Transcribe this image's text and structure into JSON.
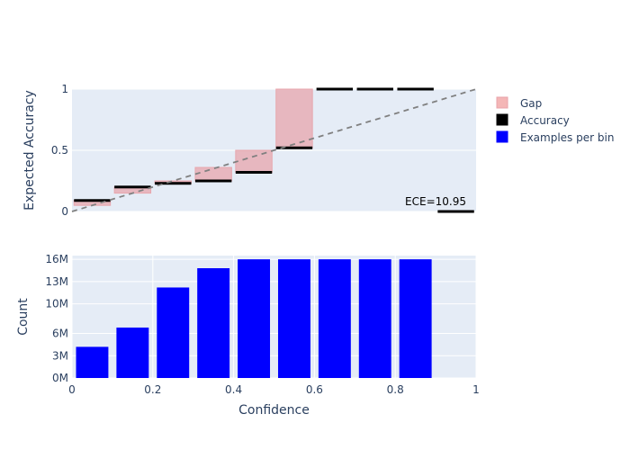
{
  "chart_data": [
    {
      "type": "bar",
      "panel": "calibration",
      "ylabel": "Expected Accuracy",
      "xlim": [
        0,
        1
      ],
      "ylim": [
        0,
        1
      ],
      "y_ticks": [
        "0",
        "0.5",
        "1"
      ],
      "y_tick_values": [
        0,
        0.5,
        1
      ],
      "bin_width": 0.1,
      "bins": [
        0.05,
        0.15,
        0.25,
        0.35,
        0.45,
        0.55,
        0.65,
        0.75,
        0.85,
        0.95
      ],
      "series": [
        {
          "name": "Gap",
          "values": [
            0.05,
            0.15,
            0.25,
            0.36,
            0.5,
            1.0,
            1.0,
            1.0,
            1.0,
            0.0
          ]
        },
        {
          "name": "Accuracy",
          "values": [
            0.09,
            0.2,
            0.23,
            0.25,
            0.32,
            0.52,
            1.0,
            1.0,
            1.0,
            0.0
          ]
        }
      ],
      "diagonal": true,
      "annotation": "ECE=10.95"
    },
    {
      "type": "bar",
      "panel": "histogram",
      "xlabel": "Confidence",
      "ylabel": "Count",
      "xlim": [
        0,
        1
      ],
      "ylim": [
        0,
        16500000
      ],
      "x_ticks": [
        "0",
        "0.2",
        "0.4",
        "0.6",
        "0.8",
        "1"
      ],
      "x_tick_values": [
        0,
        0.2,
        0.4,
        0.6,
        0.8,
        1
      ],
      "y_ticks": [
        "0M",
        "3M",
        "6M",
        "10M",
        "13M",
        "16M"
      ],
      "y_tick_values": [
        0,
        3000000,
        6000000,
        10000000,
        13000000,
        16000000
      ],
      "bins": [
        0.05,
        0.15,
        0.25,
        0.35,
        0.45,
        0.55,
        0.65,
        0.75,
        0.85
      ],
      "series": [
        {
          "name": "Examples per bin",
          "values": [
            4200000,
            6800000,
            12200000,
            14800000,
            16000000,
            16000000,
            16000000,
            16000000,
            16000000
          ]
        }
      ]
    }
  ],
  "legend": {
    "placement": "right",
    "items": [
      {
        "label": "Gap",
        "color": "#f4b6b6"
      },
      {
        "label": "Accuracy",
        "color": "#000000"
      },
      {
        "label": "Examples per bin",
        "color": "#0000ff"
      }
    ]
  },
  "colors": {
    "plot_bg": "#e5ecf6",
    "grid": "#ffffff",
    "gap_fill": "#e8b5bd",
    "gap_stroke": "#e8a3aa",
    "accuracy": "#000000",
    "hist": "#0000ff",
    "diagonal": "#808080"
  }
}
